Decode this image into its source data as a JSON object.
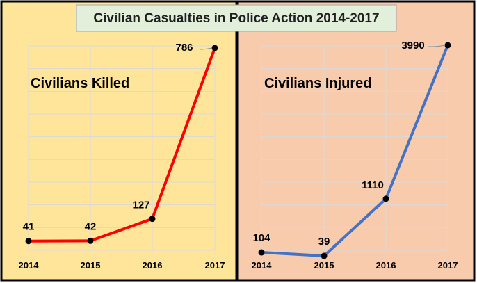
{
  "title": "Civilian Casualties in Police Action 2014-2017",
  "colors": {
    "panel_left_bg": "#fee599",
    "panel_right_bg": "#f8cbad",
    "title_bg": "#e2efda",
    "killed_line": "#ff0000",
    "injured_line": "#4472c4",
    "marker": "#000000"
  },
  "chart_data": [
    {
      "type": "line",
      "title": "Civilians Killed",
      "categories": [
        "2014",
        "2015",
        "2016",
        "2017"
      ],
      "series": [
        {
          "values": [
            41,
            42,
            127,
            786
          ],
          "color": "#ff0000"
        }
      ],
      "data_labels": [
        "41",
        "42",
        "127",
        "786"
      ],
      "ylim": [
        0,
        786
      ],
      "grid": true,
      "xlabel": "",
      "ylabel": ""
    },
    {
      "type": "line",
      "title": "Civilians Injured",
      "categories": [
        "2014",
        "2015",
        "2016",
        "2017"
      ],
      "series": [
        {
          "values": [
            104,
            39,
            1110,
            3990
          ],
          "color": "#4472c4"
        }
      ],
      "data_labels": [
        "104",
        "39",
        "1110",
        "3990"
      ],
      "ylim": [
        0,
        3990
      ],
      "grid": true,
      "xlabel": "",
      "ylabel": ""
    }
  ]
}
